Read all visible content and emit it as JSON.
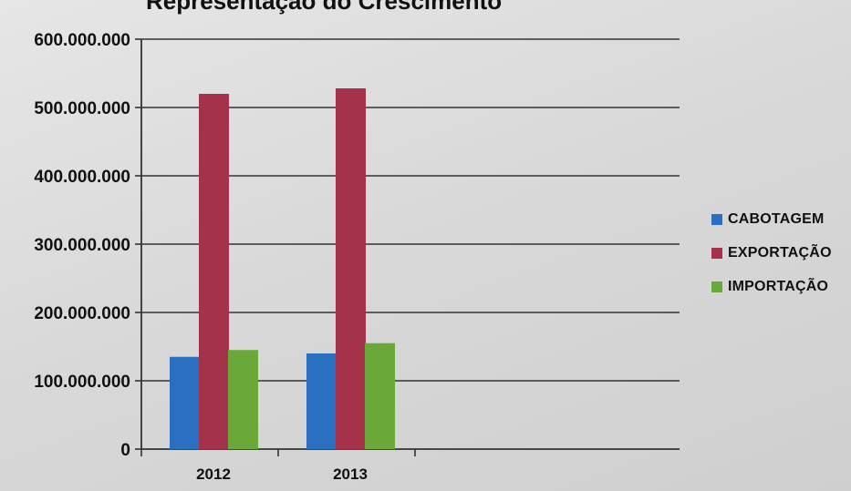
{
  "chart_data": {
    "type": "bar",
    "title": "Representação do Crescimento",
    "categories": [
      "2012",
      "2013"
    ],
    "series": [
      {
        "name": "CABOTAGEM",
        "color": "#2a6fc0",
        "values": [
          135000000,
          140000000
        ]
      },
      {
        "name": "EXPORTAÇÃO",
        "color": "#a3324a",
        "values": [
          520000000,
          528000000
        ]
      },
      {
        "name": "IMPORTAÇÃO",
        "color": "#6aa83a",
        "values": [
          145000000,
          155000000
        ]
      }
    ],
    "ylim": [
      0,
      600000000
    ],
    "yticks": [
      "0",
      "100.000.000",
      "200.000.000",
      "300.000.000",
      "400.000.000",
      "500.000.000",
      "600.000.000"
    ],
    "grid": true,
    "legend": "right",
    "xlabel": "",
    "ylabel": ""
  }
}
